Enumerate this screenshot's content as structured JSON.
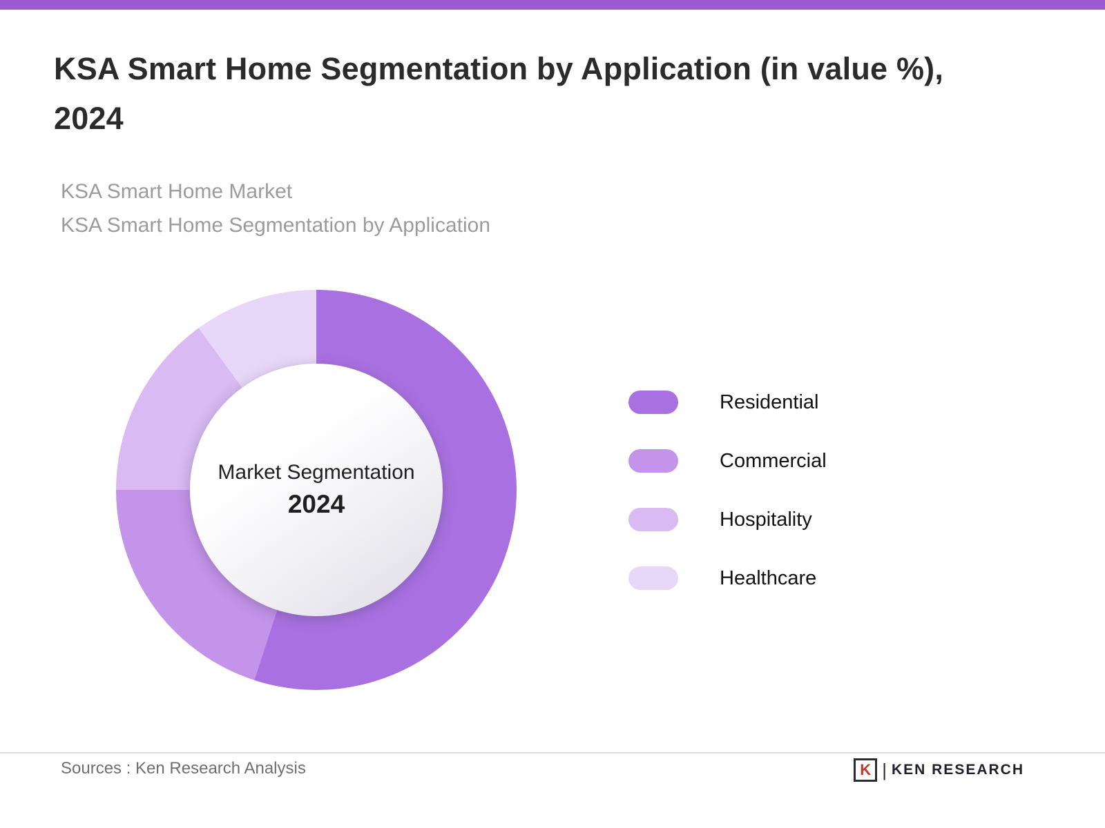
{
  "header": {
    "title": "KSA Smart Home Segmentation by Application (in value %), 2024",
    "subtitle_line1": "KSA Smart Home Market",
    "subtitle_line2": "KSA Smart Home Segmentation by Application",
    "accent_color": "#9b59d6"
  },
  "chart_data": {
    "type": "pie",
    "donut": true,
    "title": "KSA Smart Home Segmentation by Application (in value %), 2024",
    "center_label": "Market Segmentation",
    "center_sublabel": "2024",
    "categories": [
      "Residential",
      "Commercial",
      "Hospitality",
      "Healthcare"
    ],
    "values": [
      55,
      20,
      15,
      10
    ],
    "unit": "%",
    "colors": [
      "#a970e2",
      "#c493ea",
      "#d9baf3",
      "#e9d7f9"
    ],
    "start_angle_deg": 0,
    "legend_position": "right"
  },
  "footer": {
    "sources": "Sources : Ken Research Analysis",
    "logo_letter": "K",
    "logo_text": "KEN RESEARCH"
  }
}
